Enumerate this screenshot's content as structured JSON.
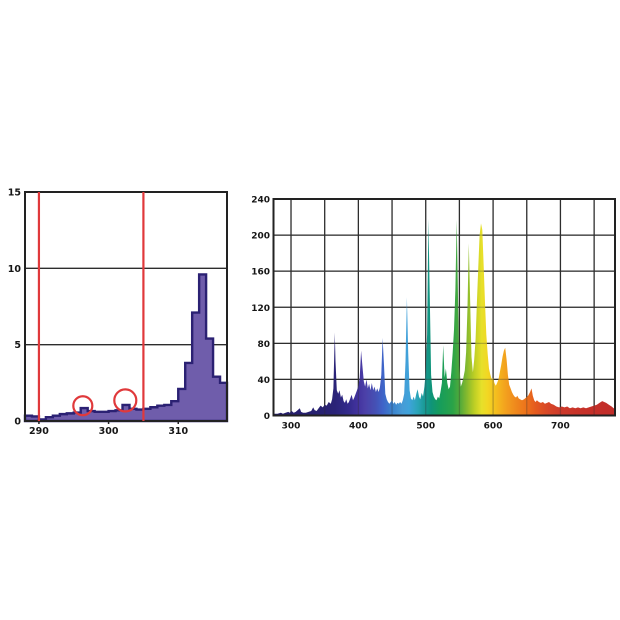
{
  "page": {
    "background": "#ffffff"
  },
  "chart_data": [
    {
      "id": "uv-histogram",
      "type": "bar",
      "title": "",
      "xlabel": "",
      "ylabel": "",
      "xlim": [
        288,
        317
      ],
      "ylim": [
        0,
        15
      ],
      "x_ticks": [
        290,
        300,
        310
      ],
      "y_ticks": [
        0,
        5,
        10,
        15
      ],
      "grid": "horizontal",
      "bin_width": 1,
      "bin_start": 288,
      "values": [
        0.35,
        0.3,
        0.1,
        0.25,
        0.35,
        0.45,
        0.5,
        0.55,
        0.85,
        0.65,
        0.6,
        0.6,
        0.65,
        0.7,
        1.05,
        0.8,
        0.75,
        0.8,
        0.9,
        1.0,
        1.05,
        1.3,
        2.1,
        3.8,
        7.1,
        9.6,
        5.4,
        2.9,
        2.5
      ],
      "bar_fill": "#6f5dab",
      "bar_stroke": "#2b2173",
      "marker_lines_x": [
        290,
        305
      ],
      "marker_color": "#e0393b",
      "highlight_circles": [
        {
          "x": 296.3,
          "y": 1.0,
          "r": 9.5
        },
        {
          "x": 302.4,
          "y": 1.35,
          "r": 11
        }
      ],
      "grid_color": "#2d2d2d",
      "border_color": "#222222"
    },
    {
      "id": "visible-spectrum",
      "type": "area",
      "title": "",
      "xlabel": "",
      "ylabel": "",
      "xlim": [
        274,
        781
      ],
      "ylim": [
        0,
        240
      ],
      "x_ticks": [
        300,
        400,
        500,
        600,
        700
      ],
      "grid_x_step": 50,
      "grid_x_start": 300,
      "grid_x_end": 750,
      "y_ticks": [
        0,
        40,
        80,
        120,
        160,
        200,
        240
      ],
      "grid": "both",
      "grid_color": "#2d2d2d",
      "border_color": "#222222",
      "points": [
        [
          274,
          2
        ],
        [
          280,
          2
        ],
        [
          285,
          3
        ],
        [
          288,
          2
        ],
        [
          292,
          3
        ],
        [
          296,
          4
        ],
        [
          298,
          3
        ],
        [
          301,
          5
        ],
        [
          304,
          3
        ],
        [
          307,
          4
        ],
        [
          310,
          6
        ],
        [
          313,
          8
        ],
        [
          315,
          4
        ],
        [
          318,
          3
        ],
        [
          322,
          3
        ],
        [
          326,
          4
        ],
        [
          330,
          5
        ],
        [
          333,
          9
        ],
        [
          335,
          6
        ],
        [
          338,
          5
        ],
        [
          341,
          8
        ],
        [
          344,
          11
        ],
        [
          347,
          9
        ],
        [
          350,
          12
        ],
        [
          353,
          11
        ],
        [
          356,
          15
        ],
        [
          359,
          13
        ],
        [
          361,
          18
        ],
        [
          363,
          30
        ],
        [
          365,
          92
        ],
        [
          366,
          60
        ],
        [
          368,
          28
        ],
        [
          370,
          24
        ],
        [
          372,
          28
        ],
        [
          374,
          20
        ],
        [
          376,
          23
        ],
        [
          378,
          16
        ],
        [
          380,
          14
        ],
        [
          382,
          18
        ],
        [
          384,
          13
        ],
        [
          386,
          15
        ],
        [
          388,
          19
        ],
        [
          390,
          23
        ],
        [
          392,
          17
        ],
        [
          394,
          20
        ],
        [
          396,
          24
        ],
        [
          398,
          28
        ],
        [
          400,
          33
        ],
        [
          402,
          42
        ],
        [
          404,
          72
        ],
        [
          406,
          55
        ],
        [
          408,
          38
        ],
        [
          410,
          32
        ],
        [
          412,
          40
        ],
        [
          414,
          30
        ],
        [
          416,
          35
        ],
        [
          418,
          28
        ],
        [
          420,
          36
        ],
        [
          422,
          28
        ],
        [
          424,
          32
        ],
        [
          426,
          26
        ],
        [
          428,
          30
        ],
        [
          430,
          26
        ],
        [
          432,
          31
        ],
        [
          434,
          45
        ],
        [
          436,
          86
        ],
        [
          438,
          56
        ],
        [
          440,
          24
        ],
        [
          442,
          18
        ],
        [
          444,
          15
        ],
        [
          446,
          13
        ],
        [
          448,
          15
        ],
        [
          450,
          17
        ],
        [
          452,
          13
        ],
        [
          454,
          15
        ],
        [
          456,
          12
        ],
        [
          458,
          14
        ],
        [
          460,
          13
        ],
        [
          462,
          15
        ],
        [
          464,
          13
        ],
        [
          466,
          17
        ],
        [
          468,
          24
        ],
        [
          470,
          60
        ],
        [
          472,
          131
        ],
        [
          474,
          70
        ],
        [
          476,
          28
        ],
        [
          478,
          19
        ],
        [
          480,
          17
        ],
        [
          482,
          21
        ],
        [
          484,
          17
        ],
        [
          486,
          24
        ],
        [
          488,
          29
        ],
        [
          490,
          21
        ],
        [
          492,
          18
        ],
        [
          494,
          25
        ],
        [
          496,
          21
        ],
        [
          498,
          32
        ],
        [
          500,
          48
        ],
        [
          502,
          90
        ],
        [
          504,
          218
        ],
        [
          506,
          130
        ],
        [
          508,
          45
        ],
        [
          510,
          26
        ],
        [
          512,
          21
        ],
        [
          514,
          18
        ],
        [
          516,
          17
        ],
        [
          518,
          21
        ],
        [
          520,
          19
        ],
        [
          522,
          26
        ],
        [
          524,
          36
        ],
        [
          526,
          78
        ],
        [
          528,
          42
        ],
        [
          530,
          52
        ],
        [
          532,
          36
        ],
        [
          534,
          29
        ],
        [
          536,
          32
        ],
        [
          538,
          48
        ],
        [
          540,
          70
        ],
        [
          542,
          95
        ],
        [
          544,
          140
        ],
        [
          546,
          217
        ],
        [
          548,
          125
        ],
        [
          550,
          55
        ],
        [
          552,
          32
        ],
        [
          554,
          36
        ],
        [
          556,
          42
        ],
        [
          558,
          50
        ],
        [
          560,
          70
        ],
        [
          562,
          120
        ],
        [
          564,
          191
        ],
        [
          566,
          125
        ],
        [
          568,
          65
        ],
        [
          570,
          48
        ],
        [
          572,
          62
        ],
        [
          574,
          85
        ],
        [
          576,
          125
        ],
        [
          578,
          165
        ],
        [
          580,
          200
        ],
        [
          582,
          213
        ],
        [
          584,
          206
        ],
        [
          586,
          165
        ],
        [
          588,
          125
        ],
        [
          590,
          90
        ],
        [
          592,
          68
        ],
        [
          594,
          52
        ],
        [
          596,
          45
        ],
        [
          598,
          40
        ],
        [
          600,
          42
        ],
        [
          602,
          36
        ],
        [
          604,
          33
        ],
        [
          606,
          36
        ],
        [
          608,
          40
        ],
        [
          610,
          48
        ],
        [
          612,
          56
        ],
        [
          614,
          65
        ],
        [
          616,
          72
        ],
        [
          618,
          75
        ],
        [
          620,
          62
        ],
        [
          622,
          45
        ],
        [
          624,
          34
        ],
        [
          626,
          30
        ],
        [
          628,
          26
        ],
        [
          630,
          23
        ],
        [
          632,
          21
        ],
        [
          634,
          20
        ],
        [
          636,
          22
        ],
        [
          638,
          19
        ],
        [
          640,
          18
        ],
        [
          643,
          17
        ],
        [
          646,
          18
        ],
        [
          649,
          20
        ],
        [
          652,
          22
        ],
        [
          655,
          26
        ],
        [
          657,
          30
        ],
        [
          659,
          22
        ],
        [
          661,
          17
        ],
        [
          663,
          15
        ],
        [
          665,
          17
        ],
        [
          668,
          15
        ],
        [
          671,
          14
        ],
        [
          674,
          15
        ],
        [
          677,
          13
        ],
        [
          680,
          14
        ],
        [
          683,
          15
        ],
        [
          686,
          13
        ],
        [
          690,
          12
        ],
        [
          694,
          10
        ],
        [
          698,
          9
        ],
        [
          702,
          10
        ],
        [
          706,
          9
        ],
        [
          710,
          10
        ],
        [
          714,
          8
        ],
        [
          718,
          9
        ],
        [
          722,
          8
        ],
        [
          726,
          9
        ],
        [
          730,
          8
        ],
        [
          734,
          9
        ],
        [
          738,
          8
        ],
        [
          742,
          9
        ],
        [
          746,
          10
        ],
        [
          750,
          11
        ],
        [
          754,
          12
        ],
        [
          758,
          14
        ],
        [
          762,
          16
        ],
        [
          765,
          15
        ],
        [
          768,
          14
        ],
        [
          772,
          12
        ],
        [
          776,
          10
        ],
        [
          779,
          8
        ],
        [
          781,
          7
        ]
      ],
      "gradient_stops": [
        [
          275,
          "#241d6d"
        ],
        [
          340,
          "#272170"
        ],
        [
          365,
          "#2a2377"
        ],
        [
          385,
          "#332a8c"
        ],
        [
          400,
          "#43339f"
        ],
        [
          410,
          "#4c40a8"
        ],
        [
          425,
          "#4550b4"
        ],
        [
          436,
          "#3f63c8"
        ],
        [
          450,
          "#3b82cd"
        ],
        [
          465,
          "#479bd6"
        ],
        [
          475,
          "#3fa3da"
        ],
        [
          488,
          "#2aa4b8"
        ],
        [
          500,
          "#17988f"
        ],
        [
          508,
          "#0f9479"
        ],
        [
          520,
          "#159c5d"
        ],
        [
          540,
          "#2aa348"
        ],
        [
          552,
          "#57ab39"
        ],
        [
          562,
          "#8abb2d"
        ],
        [
          572,
          "#bcce25"
        ],
        [
          583,
          "#e7e02a"
        ],
        [
          592,
          "#f2d723"
        ],
        [
          605,
          "#f4bc1e"
        ],
        [
          618,
          "#f3a21e"
        ],
        [
          632,
          "#ef8b1d"
        ],
        [
          648,
          "#ed741b"
        ],
        [
          662,
          "#e55c1e"
        ],
        [
          680,
          "#d84827"
        ],
        [
          700,
          "#cd3a2a"
        ],
        [
          735,
          "#c63129"
        ],
        [
          781,
          "#c12d2a"
        ]
      ]
    }
  ]
}
